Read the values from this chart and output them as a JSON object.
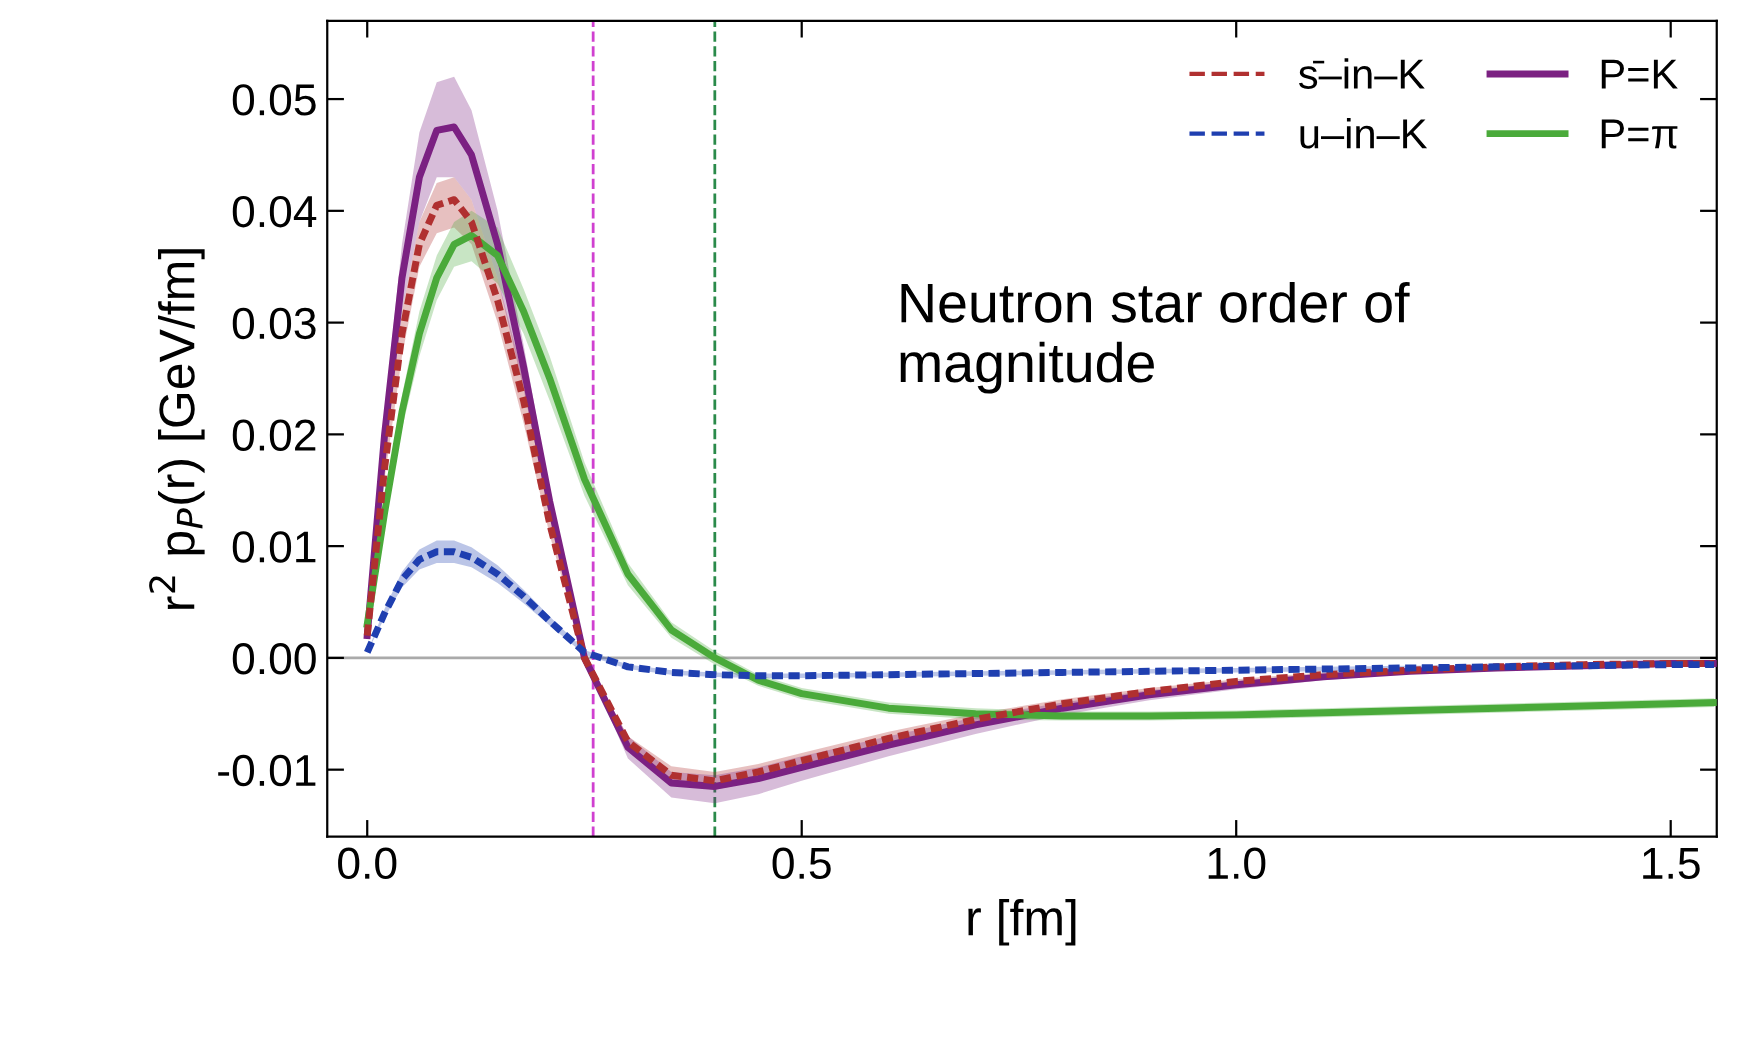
{
  "chart_data": {
    "type": "line",
    "xlabel": "r [fm]",
    "ylabel": "r$^{2}$ p$_{P}$(r) [GeV/fm]",
    "x": [
      0,
      0.02,
      0.04,
      0.06,
      0.08,
      0.1,
      0.12,
      0.15,
      0.18,
      0.21,
      0.25,
      0.3,
      0.35,
      0.4,
      0.45,
      0.5,
      0.6,
      0.7,
      0.8,
      0.9,
      1.0,
      1.1,
      1.2,
      1.3,
      1.4,
      1.5,
      1.55
    ],
    "series": [
      {
        "name": "s̄–in–K",
        "color": "#b03030",
        "line_style": "dashed",
        "values": [
          0.002,
          0.017,
          0.029,
          0.037,
          0.0405,
          0.041,
          0.039,
          0.032,
          0.023,
          0.012,
          0.0,
          -0.0075,
          -0.0105,
          -0.011,
          -0.0102,
          -0.0092,
          -0.0072,
          -0.0055,
          -0.0041,
          -0.003,
          -0.0021,
          -0.0015,
          -0.0011,
          -0.0008,
          -0.0006,
          -0.0005,
          -0.0005
        ],
        "lower": [
          0.002,
          0.016,
          0.027,
          0.035,
          0.038,
          0.0385,
          0.037,
          0.03,
          0.021,
          0.011,
          0.0,
          -0.008,
          -0.0113,
          -0.0118,
          -0.011,
          -0.0099,
          -0.0078,
          -0.006,
          -0.0045,
          -0.0033,
          -0.0023,
          -0.0017,
          -0.0012,
          -0.0009,
          -0.0007,
          -0.0006,
          -0.0006
        ],
        "upper": [
          0.002,
          0.018,
          0.031,
          0.039,
          0.0425,
          0.043,
          0.041,
          0.034,
          0.025,
          0.013,
          0.0,
          -0.007,
          -0.0097,
          -0.0102,
          -0.0095,
          -0.0085,
          -0.0066,
          -0.005,
          -0.0037,
          -0.0027,
          -0.0019,
          -0.0013,
          -0.001,
          -0.0007,
          -0.0005,
          -0.0004,
          -0.0004
        ]
      },
      {
        "name": "u–in–K",
        "color": "#1f3fb0",
        "line_style": "dashed",
        "values": [
          0.0005,
          0.004,
          0.007,
          0.0088,
          0.0095,
          0.0095,
          0.009,
          0.0075,
          0.0055,
          0.0033,
          0.0005,
          -0.0008,
          -0.0013,
          -0.0015,
          -0.0016,
          -0.0016,
          -0.0015,
          -0.0014,
          -0.0013,
          -0.0012,
          -0.0011,
          -0.001,
          -0.0009,
          -0.0008,
          -0.0007,
          -0.0006,
          -0.0006
        ],
        "lower": [
          0.0005,
          0.0036,
          0.0063,
          0.0079,
          0.0085,
          0.0085,
          0.0081,
          0.0067,
          0.0049,
          0.0029,
          0.0003,
          -0.001,
          -0.0015,
          -0.0017,
          -0.0018,
          -0.0018,
          -0.0017,
          -0.0016,
          -0.0015,
          -0.0014,
          -0.0013,
          -0.0012,
          -0.0011,
          -0.001,
          -0.0009,
          -0.0008,
          -0.0008
        ],
        "upper": [
          0.0005,
          0.0044,
          0.0077,
          0.0097,
          0.0105,
          0.0105,
          0.0099,
          0.0083,
          0.0061,
          0.0037,
          0.0007,
          -0.0006,
          -0.0011,
          -0.0013,
          -0.0014,
          -0.0014,
          -0.0013,
          -0.0012,
          -0.0011,
          -0.001,
          -0.0009,
          -0.0008,
          -0.0007,
          -0.0006,
          -0.0005,
          -0.0004,
          -0.0004
        ]
      },
      {
        "name": "P=K",
        "color": "#7b2182",
        "line_style": "solid",
        "values": [
          0.002,
          0.02,
          0.034,
          0.043,
          0.0472,
          0.0475,
          0.045,
          0.037,
          0.026,
          0.014,
          0.0,
          -0.008,
          -0.0112,
          -0.0115,
          -0.0108,
          -0.0098,
          -0.0078,
          -0.006,
          -0.0045,
          -0.0033,
          -0.0024,
          -0.0017,
          -0.0012,
          -0.0009,
          -0.0007,
          -0.0005,
          -0.0005
        ],
        "lower": [
          0.002,
          0.018,
          0.031,
          0.039,
          0.043,
          0.043,
          0.041,
          0.034,
          0.024,
          0.013,
          0.0,
          -0.009,
          -0.0125,
          -0.013,
          -0.0122,
          -0.011,
          -0.0088,
          -0.0068,
          -0.0051,
          -0.0038,
          -0.0028,
          -0.002,
          -0.0014,
          -0.001,
          -0.0008,
          -0.0006,
          -0.0006
        ],
        "upper": [
          0.002,
          0.022,
          0.037,
          0.047,
          0.0515,
          0.052,
          0.049,
          0.04,
          0.028,
          0.015,
          0.0,
          -0.007,
          -0.0102,
          -0.0105,
          -0.0098,
          -0.0088,
          -0.007,
          -0.0053,
          -0.004,
          -0.0029,
          -0.0021,
          -0.0015,
          -0.001,
          -0.0008,
          -0.0006,
          -0.0004,
          -0.0004
        ]
      },
      {
        "name": "P=π",
        "color": "#4aaa3a",
        "line_style": "solid",
        "values": [
          0.003,
          0.013,
          0.022,
          0.029,
          0.034,
          0.037,
          0.0378,
          0.036,
          0.031,
          0.025,
          0.016,
          0.0075,
          0.0025,
          0.0,
          -0.002,
          -0.0032,
          -0.0045,
          -0.005,
          -0.0052,
          -0.0052,
          -0.0051,
          -0.0049,
          -0.0047,
          -0.0045,
          -0.0043,
          -0.0041,
          -0.004
        ],
        "lower": [
          0.003,
          0.012,
          0.0205,
          0.027,
          0.032,
          0.035,
          0.0355,
          0.0335,
          0.029,
          0.023,
          0.0145,
          0.0065,
          0.0018,
          -0.0006,
          -0.0025,
          -0.0037,
          -0.005,
          -0.0055,
          -0.0056,
          -0.0056,
          -0.0055,
          -0.0053,
          -0.0051,
          -0.0049,
          -0.0047,
          -0.0045,
          -0.0044
        ],
        "upper": [
          0.003,
          0.014,
          0.0235,
          0.031,
          0.036,
          0.039,
          0.04,
          0.0385,
          0.033,
          0.027,
          0.0175,
          0.0085,
          0.0032,
          0.0006,
          -0.0015,
          -0.0027,
          -0.004,
          -0.0045,
          -0.0048,
          -0.0048,
          -0.0047,
          -0.0045,
          -0.0043,
          -0.0041,
          -0.0039,
          -0.0037,
          -0.0036
        ]
      }
    ],
    "xlim": [
      -0.046,
      1.553
    ],
    "ylim": [
      -0.016,
      0.057
    ],
    "xticks": [
      {
        "value": 0,
        "label": "0.0"
      },
      {
        "value": 0.5,
        "label": "0.5"
      },
      {
        "value": 1.0,
        "label": "1.0"
      },
      {
        "value": 1.5,
        "label": "1.5"
      }
    ],
    "yticks": [
      {
        "value": -0.01,
        "label": "-0.01"
      },
      {
        "value": 0,
        "label": "0.00"
      },
      {
        "value": 0.01,
        "label": "0.01"
      },
      {
        "value": 0.02,
        "label": "0.02"
      },
      {
        "value": 0.03,
        "label": "0.03"
      },
      {
        "value": 0.04,
        "label": "0.04"
      },
      {
        "value": 0.05,
        "label": "0.05"
      }
    ],
    "ref_lines": [
      {
        "axis": "y",
        "value": 0,
        "color": "#aaaaaa",
        "line_style": "solid"
      },
      {
        "axis": "x",
        "value": 0.26,
        "color": "#d040d0",
        "line_style": "dashed"
      },
      {
        "axis": "x",
        "value": 0.4,
        "color": "#2a8a4a",
        "line_style": "dashed"
      }
    ],
    "annotations": [
      "Neutron star order of\nmagnitude"
    ],
    "legend": "top right",
    "grid": false
  }
}
